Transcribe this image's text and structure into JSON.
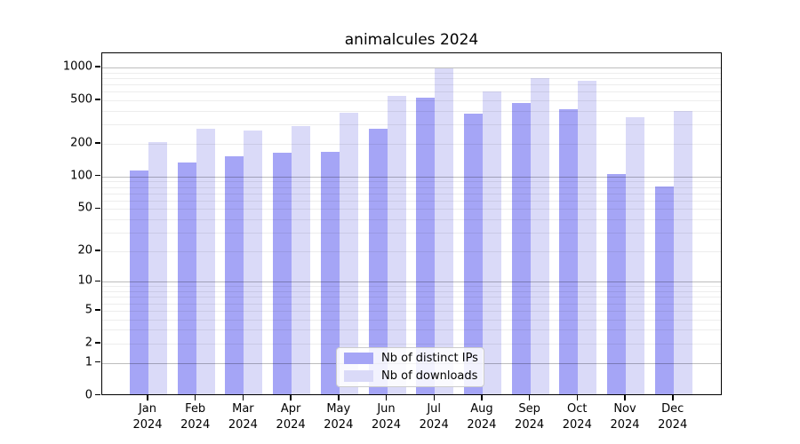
{
  "title": "animalcules 2024",
  "legend": {
    "items": [
      {
        "label": "Nb of distinct IPs"
      },
      {
        "label": "Nb of downloads"
      }
    ]
  },
  "colors": {
    "distinct_ips_bar": "#a5a5f6",
    "downloads_bar": "#dadaf8",
    "major_grid": "#bdbdbd",
    "minor_grid": "#ebebeb",
    "axis": "#000000"
  },
  "chart_data": {
    "type": "bar",
    "title": "animalcules 2024",
    "xlabel": "",
    "ylabel": "",
    "scale": "log10(1+y)",
    "grid": "horizontal, major at 1/10/100/1000 with log minors",
    "legend_position": "bottom-center-inside",
    "ylim": [
      0,
      1100
    ],
    "y_ticks": [
      0,
      1,
      2,
      5,
      10,
      20,
      50,
      100,
      200,
      500,
      1000
    ],
    "categories": [
      "Jan 2024",
      "Feb 2024",
      "Mar 2024",
      "Apr 2024",
      "May 2024",
      "Jun 2024",
      "Jul 2024",
      "Aug 2024",
      "Sep 2024",
      "Oct 2024",
      "Nov 2024",
      "Dec 2024"
    ],
    "series": [
      {
        "name": "Nb of distinct IPs",
        "color": "#a5a5f6",
        "values": [
          110,
          130,
          148,
          160,
          163,
          266,
          513,
          365,
          456,
          403,
          102,
          78
        ]
      },
      {
        "name": "Nb of downloads",
        "color": "#dadaf8",
        "values": [
          198,
          266,
          253,
          278,
          373,
          531,
          938,
          584,
          765,
          727,
          338,
          382
        ]
      }
    ]
  }
}
